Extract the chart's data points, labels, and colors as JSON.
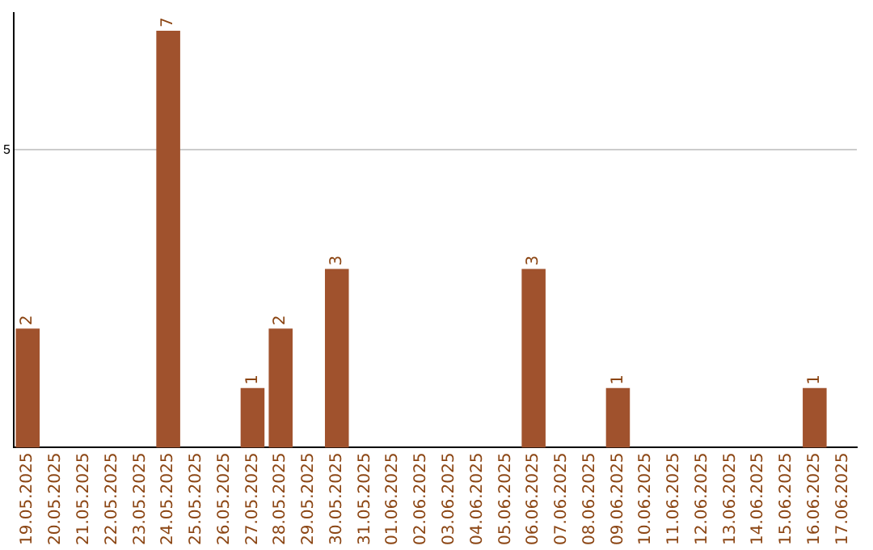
{
  "chart_data": {
    "type": "bar",
    "categories": [
      "19.05.2025",
      "20.05.2025",
      "21.05.2025",
      "22.05.2025",
      "23.05.2025",
      "24.05.2025",
      "25.05.2025",
      "26.05.2025",
      "27.05.2025",
      "28.05.2025",
      "29.05.2025",
      "30.05.2025",
      "31.05.2025",
      "01.06.2025",
      "02.06.2025",
      "03.06.2025",
      "04.06.2025",
      "05.06.2025",
      "06.06.2025",
      "07.06.2025",
      "08.06.2025",
      "09.06.2025",
      "10.06.2025",
      "11.06.2025",
      "12.06.2025",
      "13.06.2025",
      "14.06.2025",
      "15.06.2025",
      "16.06.2025",
      "17.06.2025"
    ],
    "values": [
      2,
      0,
      0,
      0,
      0,
      7,
      0,
      0,
      1,
      2,
      0,
      3,
      0,
      0,
      0,
      0,
      0,
      0,
      3,
      0,
      0,
      1,
      0,
      0,
      0,
      0,
      0,
      0,
      1,
      0
    ],
    "color": "#a0522d",
    "value_labels": [
      "2",
      null,
      null,
      null,
      null,
      "7",
      null,
      null,
      "1",
      "2",
      null,
      "3",
      null,
      null,
      null,
      null,
      null,
      null,
      "3",
      null,
      null,
      "1",
      null,
      null,
      null,
      null,
      null,
      null,
      "1",
      null
    ],
    "ylim": [
      0,
      7.3
    ],
    "yticks": [
      5
    ],
    "grid": "y"
  }
}
